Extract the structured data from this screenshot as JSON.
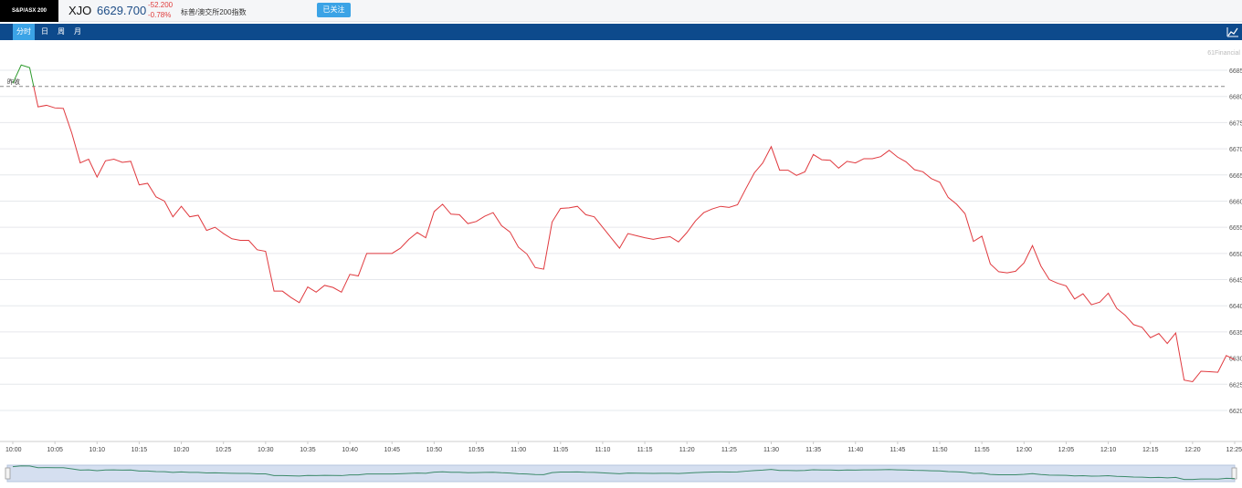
{
  "header": {
    "logo_text": "S&P/ASX 200",
    "symbol": "XJO",
    "price": "6629.700",
    "change": "-52.200",
    "change_pct": "-0.78%",
    "index_name": "标普/澳交所200指数",
    "follow_label": "已关注"
  },
  "tabs": [
    {
      "label": "分时",
      "active": true
    },
    {
      "label": "日",
      "active": false
    },
    {
      "label": "周",
      "active": false
    },
    {
      "label": "月",
      "active": false
    }
  ],
  "watermark": "61Financial",
  "colors": {
    "up": "#2e9b2e",
    "down": "#e0393e",
    "tabbar": "#0d4a8c",
    "accent": "#3ba3e6"
  },
  "chart_data": {
    "type": "line",
    "prev_close": 6681.9,
    "prev_close_label": "昨收",
    "ylim": [
      6620,
      6685
    ],
    "y_ticks": [
      6620,
      6625,
      6630,
      6635,
      6640,
      6645,
      6650,
      6655,
      6660,
      6665,
      6670,
      6675,
      6680,
      6685
    ],
    "x_ticks": [
      "10:00",
      "10:05",
      "10:10",
      "10:15",
      "10:20",
      "10:25",
      "10:30",
      "10:35",
      "10:40",
      "10:45",
      "10:50",
      "10:55",
      "11:00",
      "11:05",
      "11:10",
      "11:15",
      "11:20",
      "11:25",
      "11:30",
      "11:35",
      "11:40",
      "11:45",
      "11:50",
      "11:55",
      "12:00",
      "12:05",
      "12:10",
      "12:15",
      "12:20",
      "12:25"
    ],
    "start_time": "10:00",
    "interval_minutes": 1,
    "values": [
      6682.5,
      6686.0,
      6685.5,
      6678.0,
      6678.3,
      6677.8,
      6677.7,
      6673.0,
      6667.3,
      6668.0,
      6664.6,
      6667.7,
      6668.0,
      6667.4,
      6667.6,
      6663.1,
      6663.4,
      6660.8,
      6660.0,
      6657.0,
      6659.0,
      6657.0,
      6657.3,
      6654.4,
      6655.0,
      6653.8,
      6652.8,
      6652.5,
      6652.5,
      6650.7,
      6650.4,
      6642.8,
      6642.8,
      6641.6,
      6640.6,
      6643.6,
      6642.6,
      6643.9,
      6643.5,
      6642.6,
      6646.0,
      6645.7,
      6650.0,
      6650.0,
      6650.0,
      6650.0,
      6651.0,
      6652.7,
      6654.0,
      6653.0,
      6658.0,
      6659.4,
      6657.5,
      6657.4,
      6655.7,
      6656.1,
      6657.1,
      6657.8,
      6655.3,
      6654.1,
      6651.2,
      6649.9,
      6647.3,
      6647.0,
      6656.0,
      6658.6,
      6658.7,
      6659.0,
      6657.4,
      6657.0,
      6655.0,
      6653.0,
      6651.0,
      6653.8,
      6653.4,
      6653.0,
      6652.7,
      6653.0,
      6653.2,
      6652.2,
      6654.0,
      6656.2,
      6657.8,
      6658.5,
      6659.0,
      6658.8,
      6659.3,
      6662.4,
      6665.4,
      6667.3,
      6670.4,
      6665.9,
      6665.9,
      6664.9,
      6665.6,
      6668.9,
      6667.9,
      6667.8,
      6666.3,
      6667.6,
      6667.3,
      6668.1,
      6668.1,
      6668.5,
      6669.7,
      6668.4,
      6667.5,
      6666.0,
      6665.6,
      6664.3,
      6663.6,
      6660.7,
      6659.4,
      6657.6,
      6652.3,
      6653.3,
      6648.0,
      6646.5,
      6646.3,
      6646.6,
      6648.2,
      6651.5,
      6647.6,
      6645.0,
      6644.3,
      6643.8,
      6641.3,
      6642.3,
      6640.2,
      6640.7,
      6642.4,
      6639.5,
      6638.2,
      6636.4,
      6635.9,
      6633.9,
      6634.7,
      6632.8,
      6634.8,
      6625.8,
      6625.5,
      6627.5,
      6627.4,
      6627.3,
      6630.5,
      6629.7
    ]
  }
}
